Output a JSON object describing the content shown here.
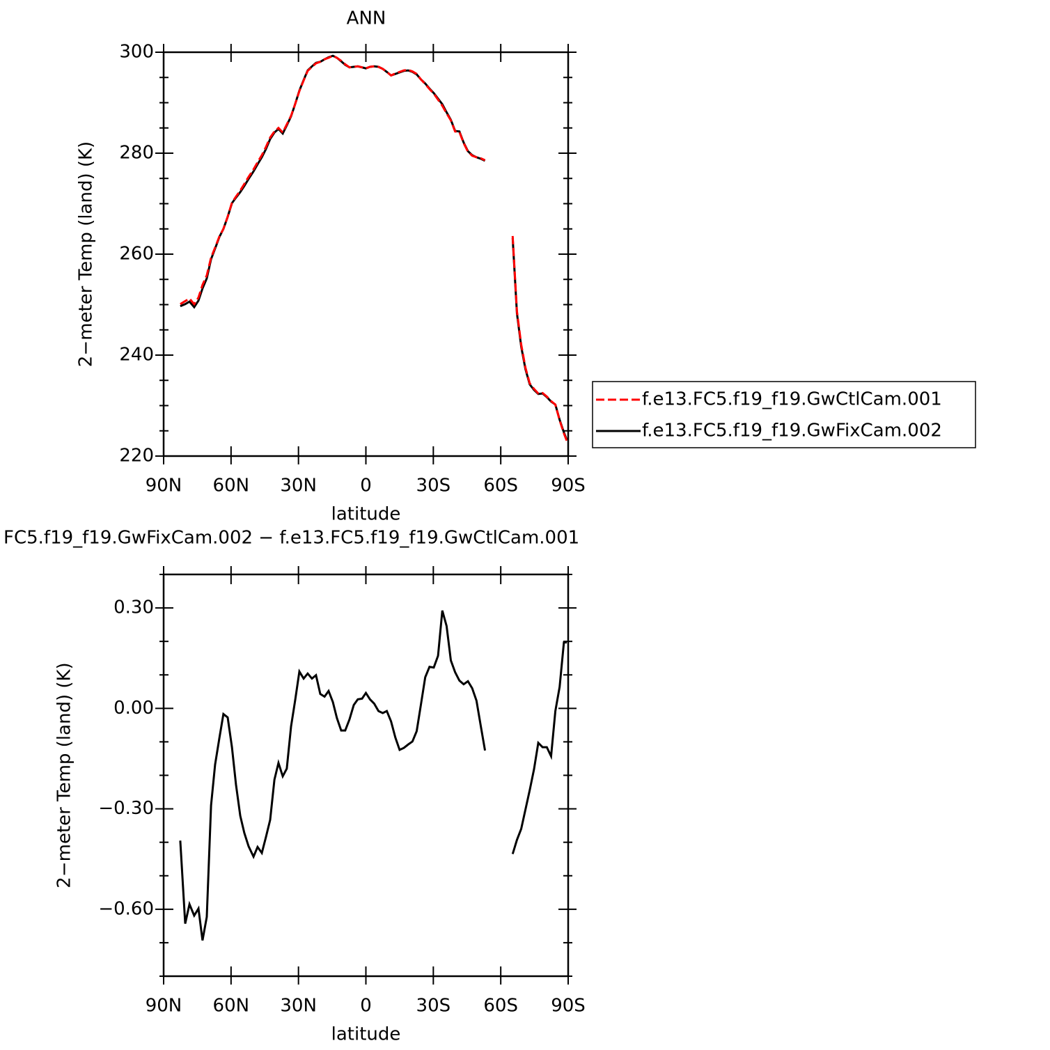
{
  "chart_data": [
    {
      "type": "line",
      "title": "ANN",
      "x_label": "latitude",
      "y_label": "2−meter Temp (land) (K)",
      "xlim": [
        90,
        -90
      ],
      "xticks": [
        {
          "value": 90,
          "label": "90N"
        },
        {
          "value": 60,
          "label": "60N"
        },
        {
          "value": 30,
          "label": "30N"
        },
        0,
        {
          "value": -30,
          "label": "30S"
        },
        {
          "value": -60,
          "label": "60S"
        },
        {
          "value": -90,
          "label": "90S"
        }
      ],
      "ylim": [
        220,
        300
      ],
      "yticks": [
        220,
        240,
        260,
        280,
        300
      ],
      "yminorticks": [
        225,
        230,
        235,
        245,
        250,
        255,
        265,
        270,
        275,
        285,
        290,
        295
      ],
      "legend": "right",
      "x": [
        82.6,
        80.4,
        78.5,
        76.4,
        74.5,
        72.7,
        70.8,
        68.9,
        67.1,
        65.2,
        63.4,
        61.5,
        59.6,
        57.8,
        55.9,
        54.1,
        52.2,
        50.0,
        48.2,
        46.3,
        44.5,
        42.6,
        40.7,
        38.9,
        37.0,
        35.2,
        33.3,
        31.5,
        29.6,
        27.7,
        25.9,
        24.0,
        22.2,
        20.3,
        18.4,
        16.6,
        14.7,
        12.9,
        11.0,
        9.2,
        7.3,
        5.4,
        3.6,
        1.7,
        0,
        -1.8,
        -3.7,
        -5.6,
        -7.5,
        -9.3,
        -11.2,
        -13.1,
        -15.0,
        -16.9,
        -18.8,
        -20.7,
        -22.6,
        -24.5,
        -26.4,
        -28.3,
        -30.2,
        -32.1,
        -34.0,
        -35.9,
        -37.8,
        -39.7,
        -41.6,
        -43.5,
        -45.4,
        -47.3,
        -49.2,
        -51.1,
        -53.0,
        -59.5,
        -65.3,
        -67.2,
        -69.1,
        -71.0,
        -72.9,
        -74.8,
        -76.7,
        -78.6,
        -80.5,
        -82.4,
        -84.3,
        -86.2,
        -88.1,
        -89.4
      ],
      "series": [
        {
          "name": "f.e13.FC5.f19_f19.GwCtlCam.001",
          "color": "#ff0000",
          "style": "dashed",
          "values": [
            250.1,
            250.7,
            251.2,
            250.1,
            251.4,
            253.9,
            255.8,
            259.3,
            261.3,
            263.5,
            265.0,
            267.4,
            270.2,
            271.4,
            272.6,
            273.9,
            275.3,
            276.8,
            278.2,
            279.6,
            281.2,
            283.1,
            284.3,
            285.0,
            284.1,
            285.7,
            287.4,
            289.7,
            292.3,
            294.4,
            296.3,
            297.1,
            297.8,
            298.1,
            298.6,
            298.9,
            299.3,
            298.9,
            298.3,
            297.6,
            297.0,
            297.1,
            297.2,
            297.0,
            296.8,
            297.1,
            297.2,
            297.1,
            296.7,
            296.1,
            295.4,
            295.8,
            296.1,
            296.4,
            296.5,
            296.2,
            295.7,
            294.6,
            293.7,
            292.7,
            291.8,
            290.6,
            289.4,
            287.9,
            286.5,
            284.3,
            284.2,
            282.0,
            280.3,
            279.5,
            279.2,
            279.0,
            278.6,
            null,
            263.6,
            248.7,
            242.1,
            237.5,
            234.4,
            233.3,
            232.4,
            232.5,
            231.8,
            230.9,
            230.2,
            227.1,
            224.5,
            223.0
          ]
        },
        {
          "name": "f.e13.FC5.f19_f19.GwFixCam.002",
          "color": "#000000",
          "style": "solid",
          "values": [
            249.7,
            250.1,
            250.6,
            249.5,
            250.8,
            253.2,
            255.2,
            259.0,
            261.1,
            263.4,
            265.0,
            267.4,
            270.1,
            271.2,
            272.3,
            273.5,
            274.9,
            276.4,
            277.8,
            279.2,
            280.8,
            282.8,
            284.1,
            284.8,
            283.9,
            285.5,
            287.3,
            289.7,
            292.4,
            294.5,
            296.4,
            297.2,
            297.9,
            298.1,
            298.6,
            299.0,
            299.3,
            298.9,
            298.2,
            297.5,
            297.0,
            297.1,
            297.2,
            297.0,
            296.8,
            297.1,
            297.2,
            297.1,
            296.7,
            296.1,
            295.4,
            295.7,
            296.0,
            296.3,
            296.4,
            296.1,
            295.6,
            294.6,
            293.8,
            292.8,
            291.9,
            290.8,
            289.7,
            288.1,
            286.6,
            284.4,
            284.3,
            282.1,
            280.4,
            279.6,
            279.2,
            278.9,
            278.5,
            null,
            263.2,
            248.3,
            241.7,
            237.2,
            234.2,
            233.1,
            232.3,
            232.4,
            231.7,
            230.8,
            230.2,
            227.2,
            224.7,
            223.2
          ]
        }
      ]
    },
    {
      "type": "line",
      "title": "FC5.f19_f19.GwFixCam.002 − f.e13.FC5.f19_f19.GwCtlCam.001",
      "x_label": "latitude",
      "y_label": "2−meter Temp (land) (K)",
      "xlim": [
        90,
        -90
      ],
      "xticks": [
        {
          "value": 90,
          "label": "90N"
        },
        {
          "value": 60,
          "label": "60N"
        },
        {
          "value": 30,
          "label": "30N"
        },
        0,
        {
          "value": -30,
          "label": "30S"
        },
        {
          "value": -60,
          "label": "60S"
        },
        {
          "value": -90,
          "label": "90S"
        }
      ],
      "ylim": [
        -0.8,
        0.4
      ],
      "yticks": [
        {
          "value": -0.6,
          "label": "−0.60"
        },
        {
          "value": -0.3,
          "label": "−0.30"
        },
        {
          "value": 0,
          "label": "0.00"
        },
        {
          "value": 0.3,
          "label": "0.30"
        }
      ],
      "yminorticks": [
        -0.8,
        -0.7,
        -0.5,
        -0.4,
        -0.2,
        -0.1,
        0.1,
        0.2,
        0.4
      ],
      "x": [
        82.6,
        80.4,
        78.5,
        76.4,
        74.5,
        72.7,
        70.8,
        68.9,
        67.1,
        65.2,
        63.4,
        61.5,
        59.6,
        57.8,
        55.9,
        54.1,
        52.2,
        50.0,
        48.2,
        46.3,
        44.5,
        42.6,
        40.7,
        38.9,
        37.0,
        35.2,
        33.3,
        31.5,
        29.6,
        27.7,
        25.9,
        24.0,
        22.2,
        20.3,
        18.4,
        16.6,
        14.7,
        12.9,
        11.0,
        9.2,
        7.3,
        5.4,
        3.6,
        1.7,
        0,
        -1.8,
        -3.7,
        -5.6,
        -7.5,
        -9.3,
        -11.2,
        -13.1,
        -15.0,
        -16.9,
        -18.8,
        -20.7,
        -22.6,
        -24.5,
        -26.4,
        -28.3,
        -30.2,
        -32.1,
        -34.0,
        -35.9,
        -37.8,
        -39.7,
        -41.6,
        -43.5,
        -45.4,
        -47.3,
        -49.2,
        -51.1,
        -53.0,
        -59.5,
        -65.3,
        -67.2,
        -69.1,
        -71.0,
        -72.9,
        -74.8,
        -76.7,
        -78.6,
        -80.5,
        -82.4,
        -84.3,
        -86.2,
        -88.1,
        -89.4
      ],
      "series": [
        {
          "color": "#000000",
          "style": "solid",
          "values": [
            -0.395,
            -0.643,
            -0.585,
            -0.619,
            -0.598,
            -0.693,
            -0.623,
            -0.29,
            -0.168,
            -0.089,
            -0.017,
            -0.027,
            -0.116,
            -0.228,
            -0.321,
            -0.372,
            -0.412,
            -0.443,
            -0.414,
            -0.432,
            -0.385,
            -0.333,
            -0.213,
            -0.163,
            -0.203,
            -0.18,
            -0.054,
            0.023,
            0.11,
            0.089,
            0.104,
            0.089,
            0.099,
            0.043,
            0.035,
            0.052,
            0.019,
            -0.029,
            -0.066,
            -0.066,
            -0.033,
            0.01,
            0.027,
            0.029,
            0.046,
            0.027,
            0.014,
            -0.008,
            -0.014,
            -0.008,
            -0.039,
            -0.087,
            -0.124,
            -0.118,
            -0.108,
            -0.099,
            -0.068,
            0.012,
            0.093,
            0.124,
            0.122,
            0.157,
            0.292,
            0.246,
            0.143,
            0.108,
            0.083,
            0.072,
            0.081,
            0.06,
            0.023,
            -0.052,
            -0.126,
            null,
            -0.435,
            -0.393,
            -0.36,
            -0.302,
            -0.244,
            -0.182,
            -0.103,
            -0.116,
            -0.116,
            -0.143,
            -0.008,
            0.064,
            0.197,
            0.197
          ]
        }
      ]
    }
  ]
}
